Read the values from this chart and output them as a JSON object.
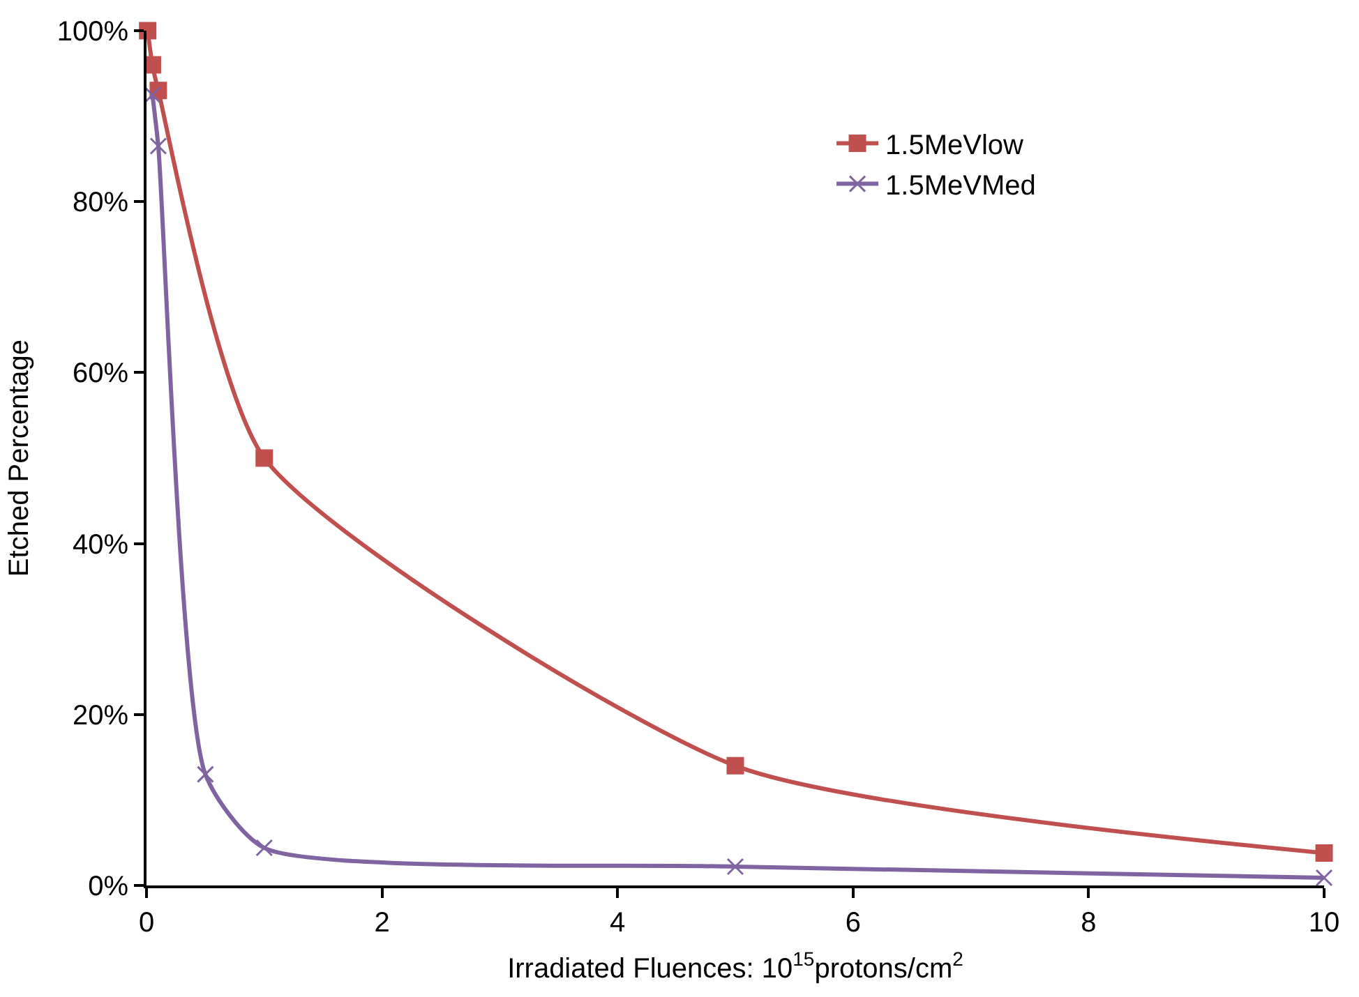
{
  "chart_data": {
    "type": "line",
    "xlabel": "Irradiated Fluences: 10$^{15}$protons/cm$^{2}$",
    "ylabel": "Etched Percentage",
    "xlim": [
      0,
      10
    ],
    "xticks": [
      0,
      2,
      4,
      6,
      8,
      10
    ],
    "ylim": [
      0,
      100
    ],
    "yticks": [
      {
        "value": 0,
        "label": "0%"
      },
      {
        "value": 20,
        "label": "20%"
      },
      {
        "value": 40,
        "label": "40%"
      },
      {
        "value": 60,
        "label": "60%"
      },
      {
        "value": 80,
        "label": "80%"
      },
      {
        "value": 100,
        "label": "100%"
      }
    ],
    "legend": "top right",
    "line_style": "solid",
    "series": [
      {
        "name": "1.5MeVlow",
        "color": "#c0504d",
        "marker": "square",
        "x": [
          0.01,
          0.05,
          0.1,
          1,
          5,
          10
        ],
        "values": [
          100,
          96,
          93,
          50,
          14,
          3.8
        ]
      },
      {
        "name": "1.5MeVMed",
        "color": "#8064a2",
        "marker": "cross",
        "x": [
          0.05,
          0.1,
          0.5,
          1,
          5,
          10
        ],
        "values": [
          92.5,
          86.5,
          13,
          4.4,
          2.2,
          0.9
        ]
      }
    ]
  }
}
